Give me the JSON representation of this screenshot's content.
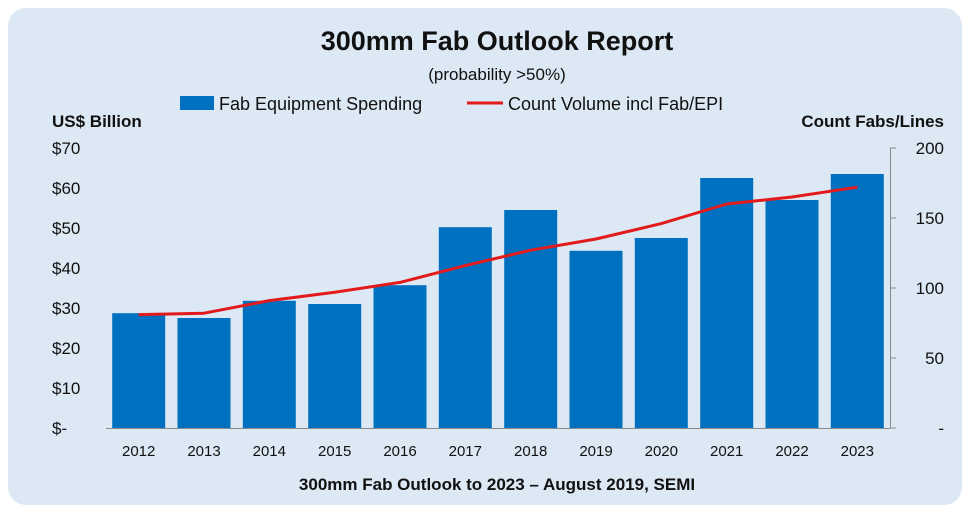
{
  "chart_data": {
    "type": "bar",
    "title": "300mm Fab Outlook Report",
    "subtitle": "(probability >50%)",
    "footer": "300mm Fab Outlook to 2023 – August 2019, SEMI",
    "categories": [
      "2012",
      "2013",
      "2014",
      "2015",
      "2016",
      "2017",
      "2018",
      "2019",
      "2020",
      "2021",
      "2022",
      "2023"
    ],
    "series": [
      {
        "name": "Fab Equipment Spending",
        "type": "bar",
        "axis": "left",
        "color": "#0070c0",
        "values": [
          28.7,
          27.5,
          31.8,
          31.0,
          35.7,
          50.2,
          54.5,
          44.3,
          47.5,
          62.5,
          57.0,
          63.5
        ]
      },
      {
        "name": "Count Volume incl Fab/EPI",
        "type": "line",
        "axis": "right",
        "color": "#e31a1c",
        "values": [
          81,
          82,
          91,
          97,
          104,
          116,
          127,
          135,
          146,
          160,
          165,
          172
        ]
      }
    ],
    "ylabel_left": "US$ Billion",
    "ylabel_right": "Count Fabs/Lines",
    "ylim_left": [
      0,
      70
    ],
    "ylim_right": [
      0,
      200
    ],
    "yticks_left": [
      "$-",
      "$10",
      "$20",
      "$30",
      "$40",
      "$50",
      "$60",
      "$70"
    ],
    "yticks_right": [
      "-",
      "50",
      "100",
      "150",
      "200"
    ],
    "legend_position": "top-center",
    "grid": false
  }
}
